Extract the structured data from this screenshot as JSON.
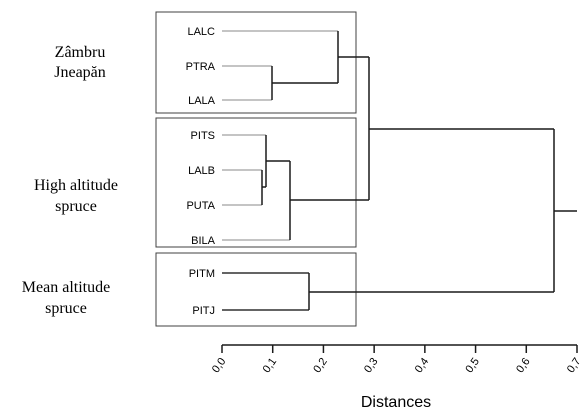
{
  "groups": [
    {
      "id": "zambru",
      "lines": [
        "Zâmbru",
        "Jneapăn"
      ]
    },
    {
      "id": "high",
      "lines": [
        "High altitude",
        "spruce"
      ]
    },
    {
      "id": "mean",
      "lines": [
        "Mean altitude",
        "spruce"
      ]
    }
  ],
  "leaves": [
    {
      "label": "LALC"
    },
    {
      "label": "PTRA"
    },
    {
      "label": "LALA"
    },
    {
      "label": "PITS"
    },
    {
      "label": "LALB"
    },
    {
      "label": "PUTA"
    },
    {
      "label": "BILA"
    },
    {
      "label": "PITM"
    },
    {
      "label": "PITJ"
    }
  ],
  "axis": {
    "title": "Distances",
    "ticks": [
      "0,0",
      "0,1",
      "0,2",
      "0,3",
      "0,4",
      "0,5",
      "0,6",
      "0,7"
    ],
    "range": [
      0,
      0.7
    ]
  },
  "dendrogram": {
    "merges": [
      {
        "children": [
          "PTRA",
          "LALA"
        ],
        "height": 0.1
      },
      {
        "children": [
          "LALC",
          "PTRA+LALA"
        ],
        "height": 0.23
      },
      {
        "children": [
          "LALB",
          "PUTA"
        ],
        "height": 0.08
      },
      {
        "children": [
          "PITS",
          "LALB+PUTA"
        ],
        "height": 0.09
      },
      {
        "children": [
          "PITS+LALB+PUTA",
          "BILA"
        ],
        "height": 0.135
      },
      {
        "children": [
          "Zambru",
          "HighSpruce"
        ],
        "height": 0.29
      },
      {
        "children": [
          "PITM",
          "PITJ"
        ],
        "height": 0.17
      },
      {
        "children": [
          "Zambru+HighSpruce",
          "PITM+PITJ"
        ],
        "height": 0.655
      }
    ]
  }
}
